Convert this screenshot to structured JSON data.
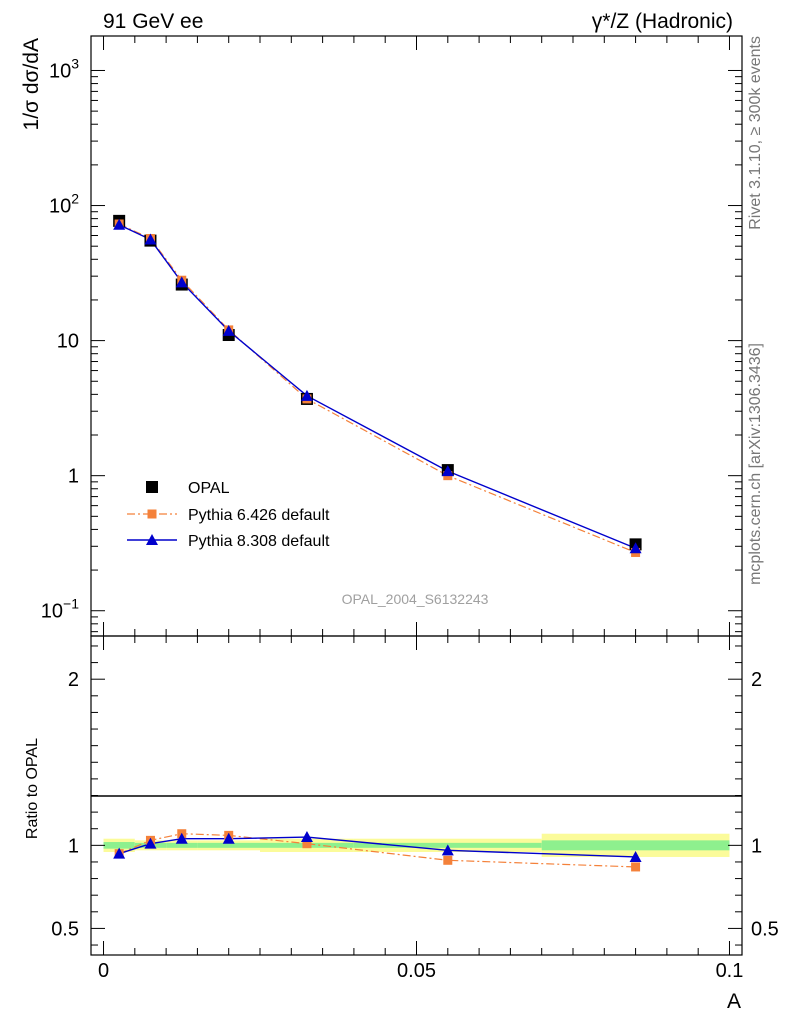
{
  "header": {
    "left": "91 GeV ee",
    "right": "γ*/Z (Hadronic)"
  },
  "side_text": {
    "top": "Rivet 3.1.10, ≥ 300k events",
    "bottom": "mcplots.cern.ch [arXiv:1306.3436]"
  },
  "analysis_tag": "OPAL_2004_S6132243",
  "colors": {
    "data": "#000000",
    "pythia6": "#f4813a",
    "pythia8": "#0000cc",
    "band_inner": "#8ef08e",
    "band_outer": "#fbfb9a"
  },
  "chart_data": [
    {
      "type": "line",
      "panel": "main",
      "ylabel": "1/σ dσ/dA",
      "xlabel": "",
      "yscale": "log",
      "xlim": [
        -0.002,
        0.102
      ],
      "ylim": [
        0.065,
        1800
      ],
      "y_tick_labels": [
        {
          "value": 0.1,
          "base": "10",
          "exp": "−1"
        },
        {
          "value": 1,
          "base": "1",
          "exp": ""
        },
        {
          "value": 10,
          "base": "10",
          "exp": ""
        },
        {
          "value": 100,
          "base": "10",
          "exp": "2"
        },
        {
          "value": 1000,
          "base": "10",
          "exp": "3"
        }
      ],
      "legend": {
        "placement": "bottom-left",
        "entries": [
          "OPAL",
          "Pythia 6.426 default",
          "Pythia 8.308 default"
        ]
      },
      "series": [
        {
          "name": "OPAL",
          "style": "square",
          "x": [
            0.0025,
            0.0075,
            0.0125,
            0.02,
            0.0325,
            0.055,
            0.085
          ],
          "y": [
            77,
            55,
            26,
            11,
            3.7,
            1.1,
            0.31
          ]
        },
        {
          "name": "Pythia 6.426 default",
          "style": "dashdot-square",
          "x": [
            0.0025,
            0.0075,
            0.0125,
            0.02,
            0.0325,
            0.055,
            0.085
          ],
          "y": [
            73,
            57,
            28,
            12,
            3.7,
            1.0,
            0.27
          ]
        },
        {
          "name": "Pythia 8.308 default",
          "style": "solid-triangle",
          "x": [
            0.0025,
            0.0075,
            0.0125,
            0.02,
            0.0325,
            0.055,
            0.085
          ],
          "y": [
            72,
            56,
            27,
            11.8,
            3.9,
            1.08,
            0.29
          ]
        }
      ]
    },
    {
      "type": "line",
      "panel": "ratio",
      "ylabel": "Ratio to OPAL",
      "xlabel": "A",
      "xlim": [
        -0.002,
        0.102
      ],
      "ylim": [
        0.34,
        2.26
      ],
      "y_tick_labels": [
        0.5,
        1,
        2
      ],
      "x_tick_labels": [
        {
          "value": 0,
          "label": "0"
        },
        {
          "value": 0.05,
          "label": "0.05"
        },
        {
          "value": 0.1,
          "label": "0.1"
        }
      ],
      "bands": [
        {
          "x0": 0,
          "x1": 0.005,
          "inner": [
            0.98,
            1.02
          ],
          "outer": [
            0.96,
            1.04
          ]
        },
        {
          "x0": 0.005,
          "x1": 0.01,
          "inner": [
            0.985,
            1.015
          ],
          "outer": [
            0.97,
            1.03
          ]
        },
        {
          "x0": 0.01,
          "x1": 0.015,
          "inner": [
            0.985,
            1.015
          ],
          "outer": [
            0.97,
            1.03
          ]
        },
        {
          "x0": 0.015,
          "x1": 0.025,
          "inner": [
            0.985,
            1.015
          ],
          "outer": [
            0.97,
            1.03
          ]
        },
        {
          "x0": 0.025,
          "x1": 0.04,
          "inner": [
            0.985,
            1.015
          ],
          "outer": [
            0.96,
            1.04
          ]
        },
        {
          "x0": 0.04,
          "x1": 0.07,
          "inner": [
            0.985,
            1.015
          ],
          "outer": [
            0.96,
            1.04
          ]
        },
        {
          "x0": 0.07,
          "x1": 0.1,
          "inner": [
            0.97,
            1.03
          ],
          "outer": [
            0.93,
            1.07
          ]
        }
      ],
      "series": [
        {
          "name": "Pythia 6.426 default",
          "style": "dashdot-square",
          "x": [
            0.0025,
            0.0075,
            0.0125,
            0.02,
            0.0325,
            0.055,
            0.085
          ],
          "y": [
            0.95,
            1.03,
            1.07,
            1.06,
            1.01,
            0.91,
            0.87
          ]
        },
        {
          "name": "Pythia 8.308 default",
          "style": "solid-triangle",
          "x": [
            0.0025,
            0.0075,
            0.0125,
            0.02,
            0.0325,
            0.055,
            0.085
          ],
          "y": [
            0.95,
            1.01,
            1.04,
            1.04,
            1.05,
            0.97,
            0.93
          ]
        }
      ]
    }
  ]
}
